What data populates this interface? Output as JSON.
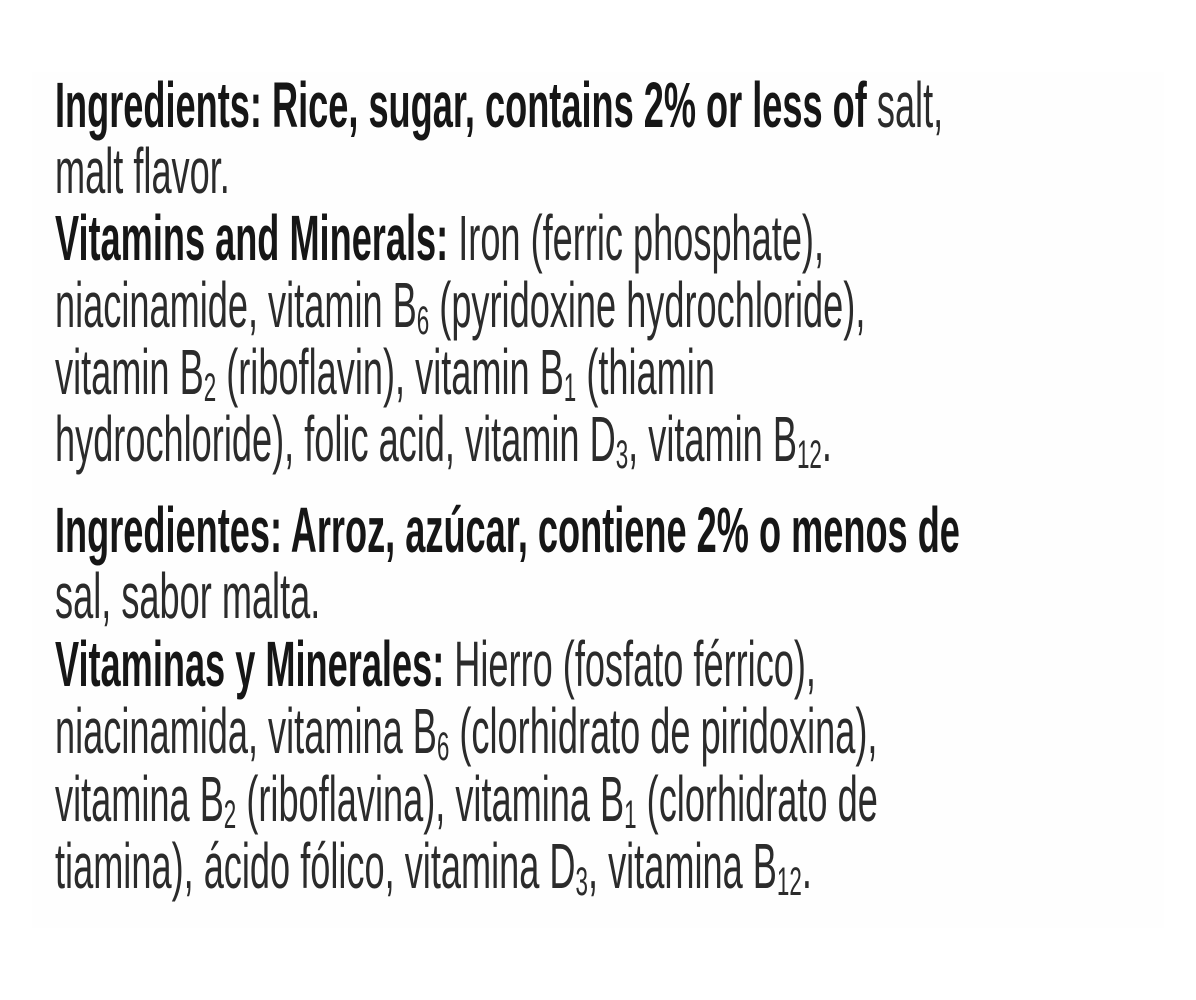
{
  "label": {
    "paragraphs": [
      {
        "language": "en",
        "lines": [
          [
            {
              "t": "Ingredients: Rice, sugar, contains 2% or less of",
              "bold": true
            },
            {
              "t": " salt,"
            }
          ],
          [
            {
              "t": "malt flavor."
            }
          ],
          [
            {
              "t": "Vitamins and Minerals:",
              "bold": true
            },
            {
              "t": " Iron (ferric phosphate),"
            }
          ],
          [
            {
              "t": "niacinamide, vitamin B"
            },
            {
              "t": "6",
              "sub": true
            },
            {
              "t": " (pyridoxine hydrochloride),"
            }
          ],
          [
            {
              "t": "vitamin B"
            },
            {
              "t": "2",
              "sub": true
            },
            {
              "t": " (riboflavin), vitamin B"
            },
            {
              "t": "1",
              "sub": true
            },
            {
              "t": " (thiamin"
            }
          ],
          [
            {
              "t": "hydrochloride), folic acid, vitamin D"
            },
            {
              "t": "3",
              "sub": true
            },
            {
              "t": ", vitamin B"
            },
            {
              "t": "12",
              "sub": true
            },
            {
              "t": "."
            }
          ]
        ]
      },
      {
        "language": "es",
        "lines": [
          [
            {
              "t": "Ingredientes: Arroz, azúcar, contiene 2% o menos de",
              "bold": true
            }
          ],
          [
            {
              "t": "sal, sabor malta."
            }
          ],
          [
            {
              "t": "Vitaminas y Minerales:",
              "bold": true
            },
            {
              "t": " Hierro (fosfato férrico),"
            }
          ],
          [
            {
              "t": "niacinamida, vitamina B"
            },
            {
              "t": "6",
              "sub": true
            },
            {
              "t": " (clorhidrato de piridoxina),"
            }
          ],
          [
            {
              "t": "vitamina B"
            },
            {
              "t": "2",
              "sub": true
            },
            {
              "t": " (riboflavina), vitamina B"
            },
            {
              "t": "1",
              "sub": true
            },
            {
              "t": " (clorhidrato de"
            }
          ],
          [
            {
              "t": "tiamina), ácido fólico, vitamina D"
            },
            {
              "t": "3",
              "sub": true
            },
            {
              "t": ", vitamina B"
            },
            {
              "t": "12",
              "sub": true
            },
            {
              "t": "."
            }
          ]
        ]
      }
    ]
  }
}
